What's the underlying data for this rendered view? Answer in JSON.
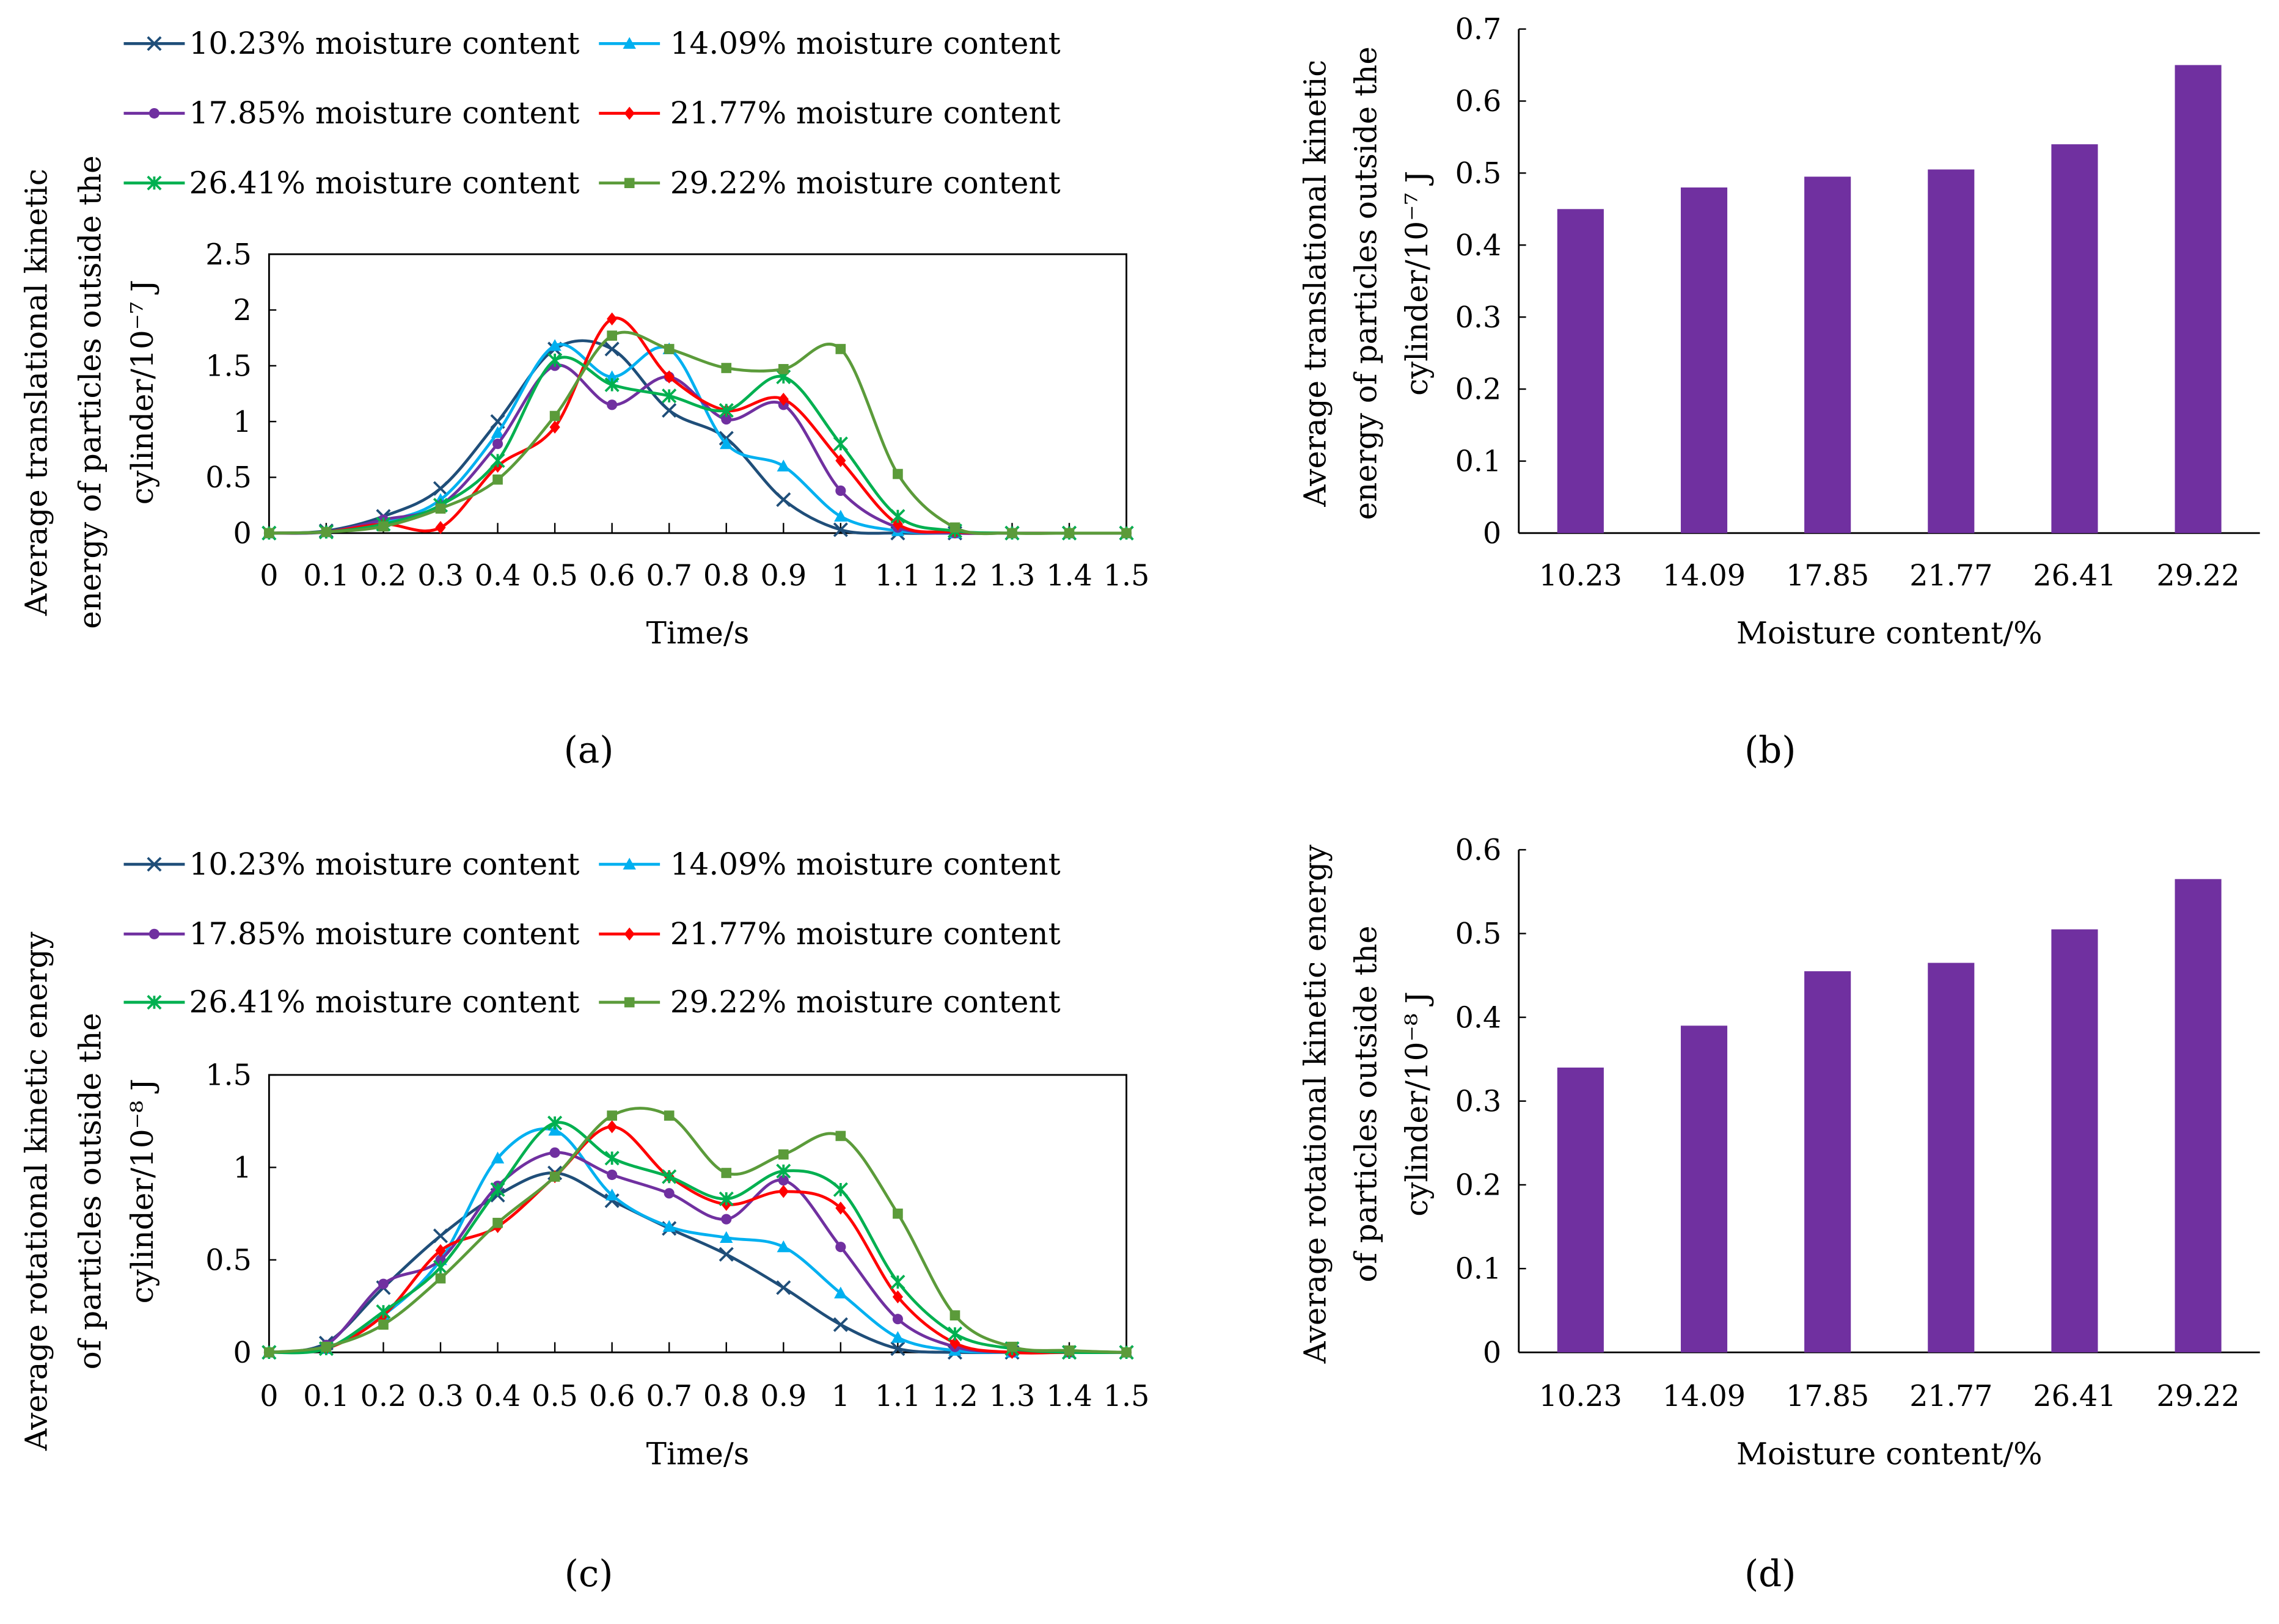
{
  "legend_labels": [
    "10.23% moisture content",
    "14.09% moisture content",
    "17.85% moisture content",
    "21.77% moisture content",
    "26.41% moisture content",
    "29.22% moisture content"
  ],
  "series_colors": [
    "#1f4e79",
    "#00b0f0",
    "#7030a0",
    "#ff0000",
    "#00b050",
    "#5b9b3a"
  ],
  "series_markers": [
    "x",
    "triangle",
    "circle",
    "diamond",
    "asterisk",
    "square"
  ],
  "bar_color": "#7030a0",
  "chart_data": [
    {
      "id": "a",
      "type": "line",
      "caption": "(a)",
      "xlabel": "Time/s",
      "ylabel": [
        "Average translational kinetic",
        "energy of particles outside the",
        "cylinder/10⁻⁷ J"
      ],
      "x": [
        0,
        0.1,
        0.2,
        0.3,
        0.4,
        0.5,
        0.6,
        0.7,
        0.8,
        0.9,
        1,
        1.1,
        1.2,
        1.3,
        1.4,
        1.5
      ],
      "xticks": [
        "0",
        "0.1",
        "0.2",
        "0.3",
        "0.4",
        "0.5",
        "0.6",
        "0.7",
        "0.8",
        "0.9",
        "1",
        "1.1",
        "1.2",
        "1.3",
        "1.4",
        "1.5"
      ],
      "ylim": [
        0,
        2.5
      ],
      "yticks": [
        "0",
        "0.5",
        "1",
        "1.5",
        "2",
        "2.5"
      ],
      "series": [
        {
          "name": "10.23% moisture content",
          "values": [
            0,
            0.02,
            0.15,
            0.4,
            1.0,
            1.65,
            1.65,
            1.1,
            0.85,
            0.3,
            0.03,
            0,
            0,
            0,
            0,
            0
          ]
        },
        {
          "name": "14.09% moisture content",
          "values": [
            0,
            0.01,
            0.1,
            0.3,
            0.9,
            1.68,
            1.4,
            1.65,
            0.8,
            0.6,
            0.15,
            0.02,
            0,
            0,
            0,
            0
          ]
        },
        {
          "name": "17.85% moisture content",
          "values": [
            0,
            0.01,
            0.12,
            0.25,
            0.8,
            1.5,
            1.15,
            1.4,
            1.02,
            1.15,
            0.38,
            0.05,
            0,
            0,
            0,
            0
          ]
        },
        {
          "name": "21.77% moisture content",
          "values": [
            0,
            0.01,
            0.08,
            0.05,
            0.6,
            0.95,
            1.92,
            1.4,
            1.1,
            1.2,
            0.65,
            0.08,
            0.01,
            0,
            0,
            0
          ]
        },
        {
          "name": "26.41% moisture content",
          "values": [
            0,
            0.01,
            0.08,
            0.25,
            0.65,
            1.55,
            1.33,
            1.23,
            1.1,
            1.4,
            0.8,
            0.15,
            0.02,
            0,
            0,
            0
          ]
        },
        {
          "name": "29.22% moisture content",
          "values": [
            0,
            0.01,
            0.06,
            0.22,
            0.48,
            1.05,
            1.77,
            1.65,
            1.48,
            1.47,
            1.65,
            0.53,
            0.05,
            0,
            0,
            0
          ]
        }
      ]
    },
    {
      "id": "b",
      "type": "bar",
      "caption": "(b)",
      "xlabel": "Moisture content/%",
      "ylabel": [
        "Average translational kinetic",
        "energy of particles outside the",
        "cylinder/10⁻⁷ J"
      ],
      "categories": [
        "10.23",
        "14.09",
        "17.85",
        "21.77",
        "26.41",
        "29.22"
      ],
      "values": [
        0.45,
        0.48,
        0.495,
        0.505,
        0.54,
        0.65
      ],
      "ylim": [
        0,
        0.7
      ],
      "yticks": [
        "0",
        "0.1",
        "0.2",
        "0.3",
        "0.4",
        "0.5",
        "0.6",
        "0.7"
      ]
    },
    {
      "id": "c",
      "type": "line",
      "caption": "(c)",
      "xlabel": "Time/s",
      "ylabel": [
        "Average rotational kinetic energy",
        "of particles outside the",
        "cylinder/10⁻⁸ J"
      ],
      "x": [
        0,
        0.1,
        0.2,
        0.3,
        0.4,
        0.5,
        0.6,
        0.7,
        0.8,
        0.9,
        1,
        1.1,
        1.2,
        1.3,
        1.4,
        1.5
      ],
      "xticks": [
        "0",
        "0.1",
        "0.2",
        "0.3",
        "0.4",
        "0.5",
        "0.6",
        "0.7",
        "0.8",
        "0.9",
        "1",
        "1.1",
        "1.2",
        "1.3",
        "1.4",
        "1.5"
      ],
      "ylim": [
        0,
        1.5
      ],
      "yticks": [
        "0",
        "0.5",
        "1",
        "1.5"
      ],
      "series": [
        {
          "name": "10.23% moisture content",
          "values": [
            0,
            0.05,
            0.35,
            0.63,
            0.85,
            0.97,
            0.82,
            0.67,
            0.53,
            0.35,
            0.15,
            0.02,
            0,
            0,
            0,
            0
          ]
        },
        {
          "name": "14.09% moisture content",
          "values": [
            0,
            0.02,
            0.2,
            0.5,
            1.05,
            1.2,
            0.85,
            0.68,
            0.62,
            0.57,
            0.32,
            0.08,
            0.01,
            0,
            0,
            0
          ]
        },
        {
          "name": "17.85% moisture content",
          "values": [
            0,
            0.04,
            0.37,
            0.5,
            0.9,
            1.08,
            0.96,
            0.86,
            0.72,
            0.93,
            0.57,
            0.18,
            0.03,
            0,
            0,
            0
          ]
        },
        {
          "name": "21.77% moisture content",
          "values": [
            0,
            0.02,
            0.2,
            0.55,
            0.68,
            0.95,
            1.22,
            0.95,
            0.8,
            0.87,
            0.78,
            0.3,
            0.05,
            0,
            0,
            0
          ]
        },
        {
          "name": "26.41% moisture content",
          "values": [
            0,
            0.02,
            0.22,
            0.46,
            0.88,
            1.24,
            1.05,
            0.95,
            0.83,
            0.98,
            0.88,
            0.38,
            0.1,
            0.02,
            0,
            0
          ]
        },
        {
          "name": "29.22% moisture content",
          "values": [
            0,
            0.03,
            0.15,
            0.4,
            0.7,
            0.95,
            1.28,
            1.28,
            0.97,
            1.07,
            1.17,
            0.75,
            0.2,
            0.03,
            0.01,
            0
          ]
        }
      ]
    },
    {
      "id": "d",
      "type": "bar",
      "caption": "(d)",
      "xlabel": "Moisture content/%",
      "ylabel": [
        "Average rotational kinetic energy",
        "of particles outside the",
        "cylinder/10⁻⁸ J"
      ],
      "categories": [
        "10.23",
        "14.09",
        "17.85",
        "21.77",
        "26.41",
        "29.22"
      ],
      "values": [
        0.34,
        0.39,
        0.455,
        0.465,
        0.505,
        0.565
      ],
      "ylim": [
        0,
        0.6
      ],
      "yticks": [
        "0",
        "0.1",
        "0.2",
        "0.3",
        "0.4",
        "0.5",
        "0.6"
      ]
    }
  ]
}
